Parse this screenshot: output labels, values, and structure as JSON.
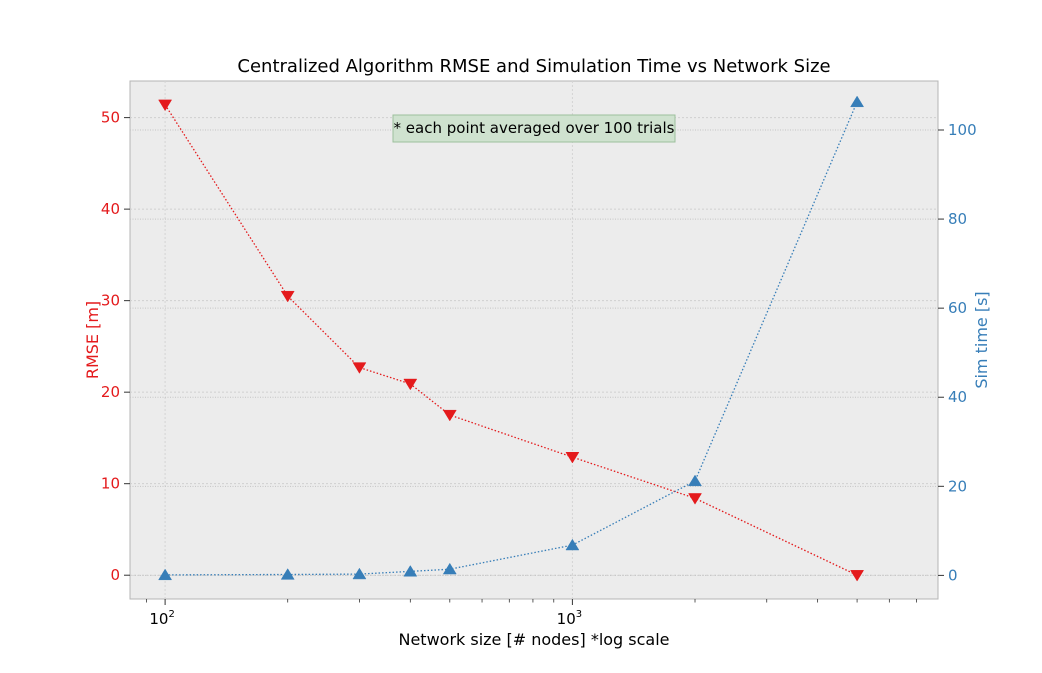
{
  "chart_data": {
    "type": "line",
    "title": "Centralized Algorithm RMSE and Simulation Time vs Network Size",
    "xlabel": "Network size [# nodes] *log scale",
    "ylabel_left": "RMSE [m]",
    "ylabel_right": "Sim time [s]",
    "x_scale": "log",
    "x_ticks": [
      {
        "value": 100,
        "base": "10",
        "exp": "2"
      },
      {
        "value": 1000,
        "base": "10",
        "exp": "3"
      }
    ],
    "xlim": [
      82,
      7900
    ],
    "ylim_left": [
      -2.6,
      54.0
    ],
    "ylim_right": [
      -5.3,
      111.0
    ],
    "y_ticks_left": [
      "0",
      "10",
      "20",
      "30",
      "40",
      "50"
    ],
    "y_ticks_right": [
      "0",
      "20",
      "40",
      "60",
      "80",
      "100"
    ],
    "grid": true,
    "annotation": "* each point averaged over 100 trials",
    "colors": {
      "rmse": "#e41a1c",
      "time": "#377eb8",
      "plot_bg": "#ececec",
      "annotation_bg": "#cfe2cf",
      "annotation_border": "#9cc09c"
    },
    "series": [
      {
        "axis": "left",
        "marker": "triangle-down",
        "x": [
          100,
          200,
          300,
          400,
          500,
          1000,
          2000,
          5000
        ],
        "values": [
          51.4,
          30.5,
          22.7,
          20.9,
          17.5,
          12.9,
          8.4,
          0.0
        ]
      },
      {
        "axis": "right",
        "marker": "triangle-up",
        "x": [
          100,
          200,
          300,
          400,
          500,
          1000,
          2000,
          5000
        ],
        "values": [
          0.1,
          0.2,
          0.3,
          0.9,
          1.4,
          6.8,
          21.2,
          106.3
        ]
      }
    ]
  }
}
